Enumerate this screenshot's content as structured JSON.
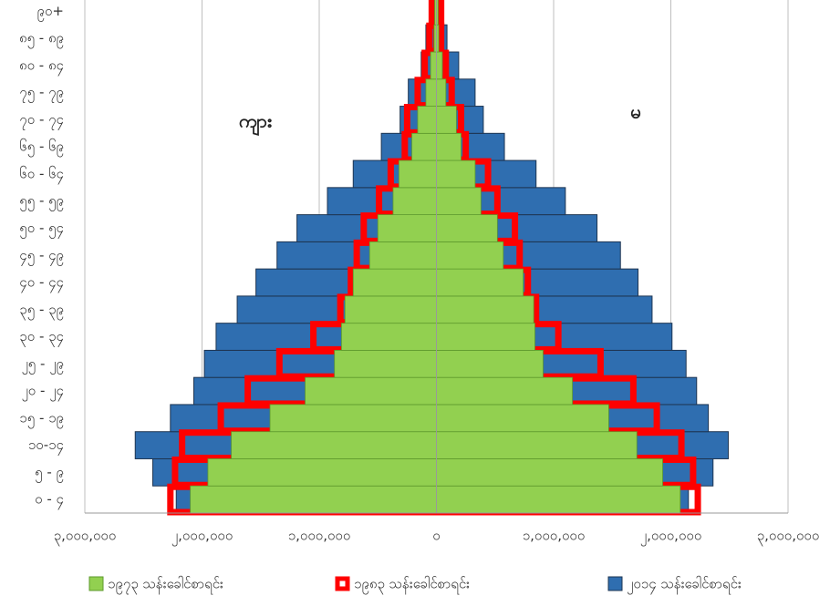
{
  "chart_data": {
    "type": "pyramid",
    "categories": [
      "၀ - ၄",
      "၅ - ၉",
      "၁၀-၁၄",
      "၁၅ - ၁၉",
      "၂၀ - ၂၄",
      "၂၅ - ၂၉",
      "၃၀ - ၃၄",
      "၃၅ - ၃၉",
      "၄၀ - ၄၄",
      "၄၅ - ၄၉",
      "၅၀ - ၅၄",
      "၅၅ - ၅၉",
      "၆၀ - ၆၄",
      "၆၅ - ၆၉",
      "၇၀ - ၇၄",
      "၇၅ - ၇၉",
      "၈၀ - ၈၄",
      "၈၅ - ၈၉",
      "၉၀+"
    ],
    "annotations": [
      "ကျား",
      "မ"
    ],
    "series": [
      {
        "name": "၂၀၁၄ သန်းခေါင်စာရင်း",
        "color": "#2f6eb0",
        "style": "fill",
        "male": [
          -2220000,
          -2420000,
          -2570000,
          -2270000,
          -2070000,
          -1980000,
          -1880000,
          -1700000,
          -1540000,
          -1360000,
          -1190000,
          -930000,
          -710000,
          -470000,
          -310000,
          -240000,
          -130000,
          -90000,
          -50000
        ],
        "female": [
          2150000,
          2360000,
          2490000,
          2320000,
          2220000,
          2130000,
          2010000,
          1840000,
          1720000,
          1570000,
          1370000,
          1100000,
          850000,
          580000,
          400000,
          330000,
          190000,
          90000,
          50000
        ]
      },
      {
        "name": "၁၉၈၃ သန်းခေါင်စာရင်း",
        "color": "#ff0000",
        "style": "outline",
        "male": [
          -2270000,
          -2230000,
          -2170000,
          -1840000,
          -1610000,
          -1340000,
          -1050000,
          -820000,
          -730000,
          -680000,
          -620000,
          -490000,
          -390000,
          -270000,
          -250000,
          -160000,
          -100000,
          -60000,
          -40000
        ],
        "female": [
          2230000,
          2190000,
          2090000,
          1880000,
          1680000,
          1400000,
          1040000,
          850000,
          780000,
          710000,
          670000,
          520000,
          440000,
          250000,
          210000,
          130000,
          80000,
          40000,
          40000
        ]
      },
      {
        "name": "၁၉၇၃ သန်းခေါင်စာရင်း",
        "color": "#92d050",
        "style": "fill",
        "male": [
          -2100000,
          -1950000,
          -1750000,
          -1420000,
          -1120000,
          -870000,
          -810000,
          -780000,
          -710000,
          -570000,
          -500000,
          -370000,
          -320000,
          -210000,
          -160000,
          -90000,
          -50000,
          -20000,
          -15000
        ],
        "female": [
          2080000,
          1930000,
          1710000,
          1470000,
          1160000,
          910000,
          840000,
          830000,
          740000,
          570000,
          520000,
          380000,
          330000,
          210000,
          170000,
          80000,
          50000,
          20000,
          15000
        ]
      }
    ],
    "legend_order": [
      2,
      1,
      0
    ],
    "xlim": [
      -3000000,
      3000000
    ],
    "xticks": [
      {
        "value": -3000000,
        "label": "၃,၀၀၀,၀၀၀"
      },
      {
        "value": -2000000,
        "label": "၂,၀၀၀,၀၀၀"
      },
      {
        "value": -1000000,
        "label": "၁,၀၀၀,၀၀၀"
      },
      {
        "value": 0,
        "label": "၀"
      },
      {
        "value": 1000000,
        "label": "၁,၀၀၀,၀၀၀"
      },
      {
        "value": 2000000,
        "label": "၂,၀၀၀,၀၀၀"
      },
      {
        "value": 3000000,
        "label": "၃,၀၀၀,၀၀၀"
      }
    ],
    "grid": true
  }
}
